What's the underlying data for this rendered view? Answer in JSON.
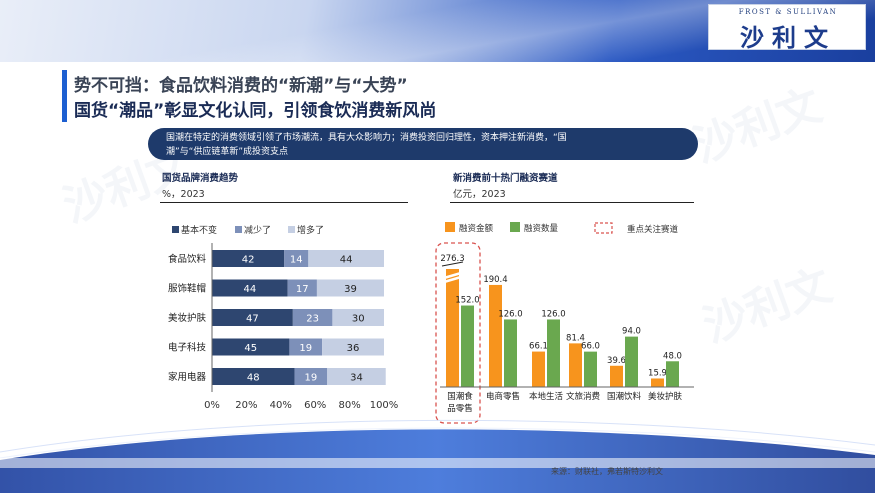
{
  "logo": {
    "line1": "FROST & SULLIVAN",
    "line2": "沙利文"
  },
  "header": {
    "title_line1": "势不可挡：食品饮料消费的“新潮”与“大势”",
    "title_line2": "国货“潮品”彰显文化认同，引领食饮消费新风尚"
  },
  "banner": {
    "line1": "国潮在特定的消费领域引领了市场潮流，具有大众影响力；消费投资回归理性，资本押注新消费，“国",
    "line2": "潮”与“供应链革新”成投资支点"
  },
  "left_chart": {
    "title": "国货品牌消费趋势",
    "unit": "%，2023"
  },
  "right_chart": {
    "title": "新消费前十热门融资赛道",
    "unit": "亿元，2023",
    "focus_legend": "重点关注赛道"
  },
  "source": "来源：财联社，弗若斯特沙利文",
  "colors": {
    "navy": "#2e4670",
    "mid": "#7d90b9",
    "light": "#c5cfe3",
    "orange": "#f7941d",
    "green": "#6aa84f",
    "red": "#d9534f"
  },
  "chart_data": [
    {
      "type": "bar",
      "orientation": "horizontal",
      "stacked": true,
      "title": "国货品牌消费趋势",
      "unit": "%，2023",
      "categories": [
        "食品饮料",
        "服饰鞋帽",
        "美妆护肤",
        "电子科技",
        "家用电器"
      ],
      "series": [
        {
          "name": "基本不变",
          "color": "#2e4670",
          "values": [
            42,
            44,
            47,
            45,
            48
          ]
        },
        {
          "name": "减少了",
          "color": "#7d90b9",
          "values": [
            14,
            17,
            23,
            19,
            19
          ]
        },
        {
          "name": "增多了",
          "color": "#c5cfe3",
          "values": [
            44,
            39,
            30,
            36,
            34
          ]
        }
      ],
      "xlim": [
        0,
        100
      ],
      "xticks": [
        "0%",
        "20%",
        "40%",
        "60%",
        "80%",
        "100%"
      ],
      "legend": "top"
    },
    {
      "type": "bar",
      "stacked": false,
      "title": "新消费前十热门融资赛道",
      "unit": "亿元，2023",
      "categories": [
        "国潮食品零售",
        "电商零售",
        "本地生活",
        "文旅消费",
        "国潮饮料",
        "美妆护肤"
      ],
      "series": [
        {
          "name": "融资金额",
          "color": "#f7941d",
          "values": [
            276.3,
            190.4,
            66.1,
            81.4,
            39.6,
            15.9
          ]
        },
        {
          "name": "融资数量",
          "color": "#6aa84f",
          "values": [
            152.0,
            126.0,
            126.0,
            66.0,
            94.0,
            48.0
          ]
        }
      ],
      "data_labels": [
        [
          "276.3",
          "152.0"
        ],
        [
          "190.4",
          "126.0"
        ],
        [
          "66.1",
          "126.0"
        ],
        [
          "81.4",
          "66.0"
        ],
        [
          "39.6",
          "94.0"
        ],
        [
          "15.9",
          "48.0"
        ]
      ],
      "axis_break": true,
      "highlight": "国潮食品零售",
      "legend": "top"
    }
  ]
}
